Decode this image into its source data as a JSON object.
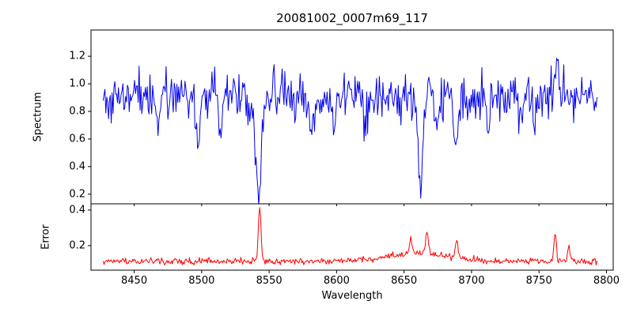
{
  "chart_data": {
    "type": "line",
    "title": "20081002_0007m69_117",
    "xlabel": "Wavelength",
    "xlim": [
      8418,
      8805
    ],
    "x_ticks": [
      8450,
      8500,
      8550,
      8600,
      8650,
      8700,
      8750,
      8800
    ],
    "x_start": 8427,
    "x_end": 8793,
    "n_points": 550,
    "grid": false,
    "legend": "none",
    "panels": [
      {
        "name": "spectrum",
        "ylabel": "Spectrum",
        "color": "#0000ee",
        "ylim": [
          0.13,
          1.39
        ],
        "yticks": [
          0.2,
          0.4,
          0.6,
          0.8,
          1.0,
          1.2
        ],
        "baseline": 0.92,
        "noise_sigma": 0.082,
        "seed": 1337,
        "absorption_lines": [
          {
            "center": 8468.0,
            "depth": 0.18,
            "width": 1.4
          },
          {
            "center": 8498.0,
            "depth": 0.3,
            "width": 2.0
          },
          {
            "center": 8514.1,
            "depth": 0.22,
            "width": 1.5
          },
          {
            "center": 8542.1,
            "depth": 0.72,
            "width": 2.1
          },
          {
            "center": 8582.0,
            "depth": 0.2,
            "width": 1.5
          },
          {
            "center": 8598.0,
            "depth": 0.18,
            "width": 1.3
          },
          {
            "center": 8621.0,
            "depth": 0.16,
            "width": 1.3
          },
          {
            "center": 8662.1,
            "depth": 0.66,
            "width": 1.9
          },
          {
            "center": 8674.7,
            "depth": 0.22,
            "width": 1.4
          },
          {
            "center": 8688.6,
            "depth": 0.34,
            "width": 1.6
          },
          {
            "center": 8713.0,
            "depth": 0.18,
            "width": 1.4
          },
          {
            "center": 8736.0,
            "depth": 0.2,
            "width": 1.4
          },
          {
            "center": 8747.0,
            "depth": 0.18,
            "width": 1.3
          }
        ],
        "spikes": [
          {
            "center": 8763.0,
            "height": 0.28,
            "width": 1.2
          }
        ]
      },
      {
        "name": "error",
        "ylabel": "Error",
        "color": "#ff0000",
        "ylim": [
          0.062,
          0.435
        ],
        "yticks": [
          0.2,
          0.4
        ],
        "baseline": 0.112,
        "noise_sigma": 0.009,
        "seed": 99,
        "broad_bump": {
          "center": 8660,
          "height": 0.045,
          "width": 22
        },
        "spikes": [
          {
            "center": 8543.0,
            "height": 0.3,
            "width": 1.0
          },
          {
            "center": 8655.0,
            "height": 0.1,
            "width": 1.0
          },
          {
            "center": 8667.0,
            "height": 0.12,
            "width": 1.0
          },
          {
            "center": 8689.0,
            "height": 0.1,
            "width": 0.9
          },
          {
            "center": 8762.0,
            "height": 0.16,
            "width": 0.9
          },
          {
            "center": 8772.0,
            "height": 0.08,
            "width": 0.9
          }
        ]
      }
    ]
  }
}
